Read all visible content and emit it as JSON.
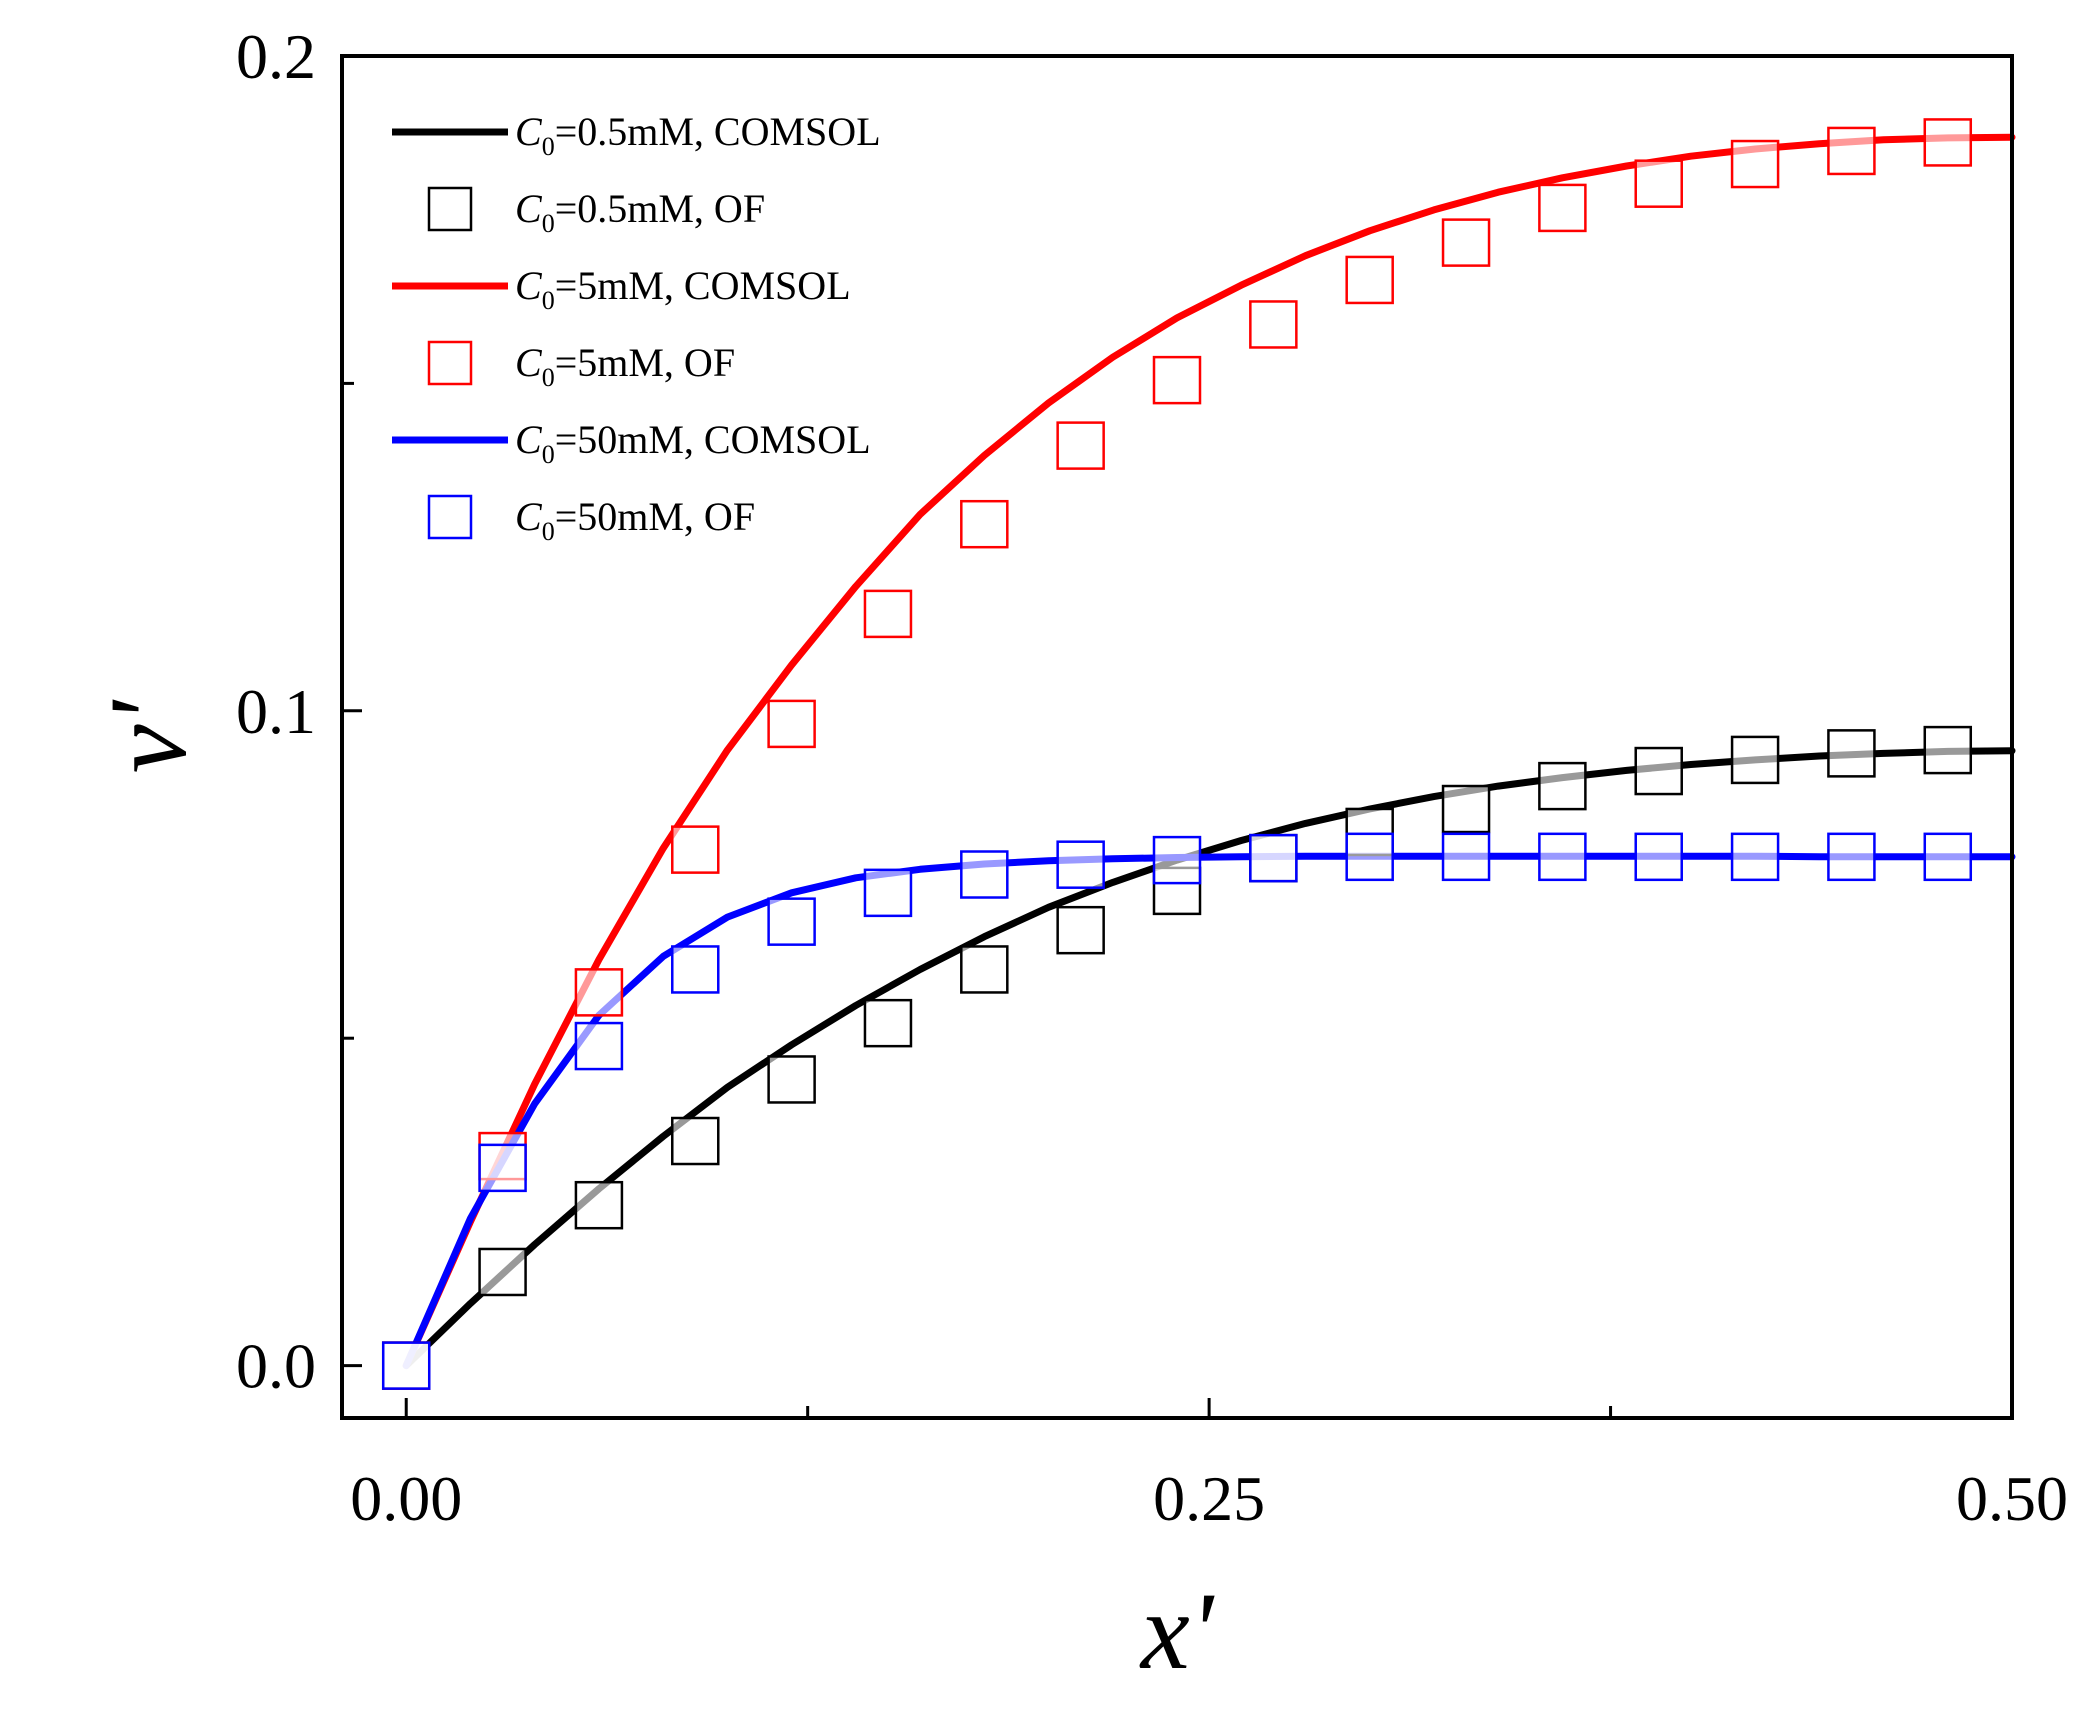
{
  "chart_data": {
    "type": "line",
    "title": "",
    "xlabel": "x'",
    "ylabel": "v'",
    "xlim": [
      -0.02,
      0.5
    ],
    "ylim": [
      -0.008,
      0.2
    ],
    "xticks": [
      0.0,
      0.125,
      0.25,
      0.375,
      0.5
    ],
    "xtick_labels": [
      "0.00",
      "",
      "0.25",
      "",
      "0.50"
    ],
    "yticks": [
      0.0,
      0.05,
      0.1,
      0.15,
      0.2
    ],
    "ytick_labels": [
      "0.0",
      "",
      "0.1",
      "",
      "0.2"
    ],
    "grid": false,
    "legend_position": "top-left",
    "line_x": [
      0.0,
      0.02,
      0.04,
      0.06,
      0.08,
      0.1,
      0.12,
      0.14,
      0.16,
      0.18,
      0.2,
      0.22,
      0.24,
      0.26,
      0.28,
      0.3,
      0.32,
      0.34,
      0.36,
      0.38,
      0.4,
      0.42,
      0.44,
      0.46,
      0.48,
      0.5
    ],
    "marker_x": [
      0.0,
      0.03,
      0.06,
      0.09,
      0.12,
      0.15,
      0.18,
      0.21,
      0.24,
      0.27,
      0.3,
      0.33,
      0.36,
      0.39,
      0.42,
      0.45,
      0.48
    ],
    "series": [
      {
        "name": "C0=0.5mM, COMSOL",
        "label_sym": "C",
        "label_sub": "0",
        "label_rest": "=0.5mM, COMSOL",
        "kind": "line",
        "color": "#000000",
        "values": [
          0.0,
          0.0095,
          0.0185,
          0.027,
          0.035,
          0.0425,
          0.049,
          0.055,
          0.0605,
          0.0655,
          0.07,
          0.0738,
          0.0772,
          0.0802,
          0.0828,
          0.085,
          0.0869,
          0.0885,
          0.0898,
          0.0909,
          0.0918,
          0.0925,
          0.0931,
          0.0935,
          0.0938,
          0.0939
        ]
      },
      {
        "name": "C0=0.5mM, OF",
        "label_sym": "C",
        "label_sub": "0",
        "label_rest": "=0.5mM, OF",
        "kind": "marker",
        "color": "#000000",
        "values": [
          0.0,
          0.0143,
          0.0245,
          0.0343,
          0.0437,
          0.0523,
          0.0605,
          0.0665,
          0.0725,
          0.0775,
          0.0815,
          0.085,
          0.0885,
          0.0908,
          0.0925,
          0.0935,
          0.094
        ]
      },
      {
        "name": "C0=5mM, COMSOL",
        "label_sym": "C",
        "label_sub": "0",
        "label_rest": "=5mM, COMSOL",
        "kind": "line",
        "color": "#ff0000",
        "values": [
          0.0,
          0.022,
          0.043,
          0.062,
          0.079,
          0.094,
          0.107,
          0.119,
          0.13,
          0.139,
          0.147,
          0.154,
          0.16,
          0.165,
          0.1695,
          0.1733,
          0.1765,
          0.1792,
          0.1814,
          0.1832,
          0.1847,
          0.1858,
          0.1866,
          0.1872,
          0.1875,
          0.1876
        ]
      },
      {
        "name": "C0=5mM, OF",
        "label_sym": "C",
        "label_sub": "0",
        "label_rest": "=5mM, OF",
        "kind": "marker",
        "color": "#ff0000",
        "values": [
          0.0,
          0.032,
          0.057,
          0.0788,
          0.098,
          0.1148,
          0.1285,
          0.1405,
          0.1505,
          0.159,
          0.1658,
          0.1715,
          0.1768,
          0.1805,
          0.1835,
          0.1855,
          0.1868
        ]
      },
      {
        "name": "C0=50mM, COMSOL",
        "label_sym": "C",
        "label_sub": "0",
        "label_rest": "=50mM, COMSOL",
        "kind": "line",
        "color": "#0000ff",
        "values": [
          0.0,
          0.0225,
          0.04,
          0.0535,
          0.0625,
          0.0685,
          0.0722,
          0.0745,
          0.0758,
          0.0766,
          0.0771,
          0.0774,
          0.0776,
          0.0777,
          0.0778,
          0.0778,
          0.0778,
          0.0778,
          0.0778,
          0.0778,
          0.0778,
          0.0778,
          0.0777,
          0.0777,
          0.0777,
          0.0777
        ]
      },
      {
        "name": "C0=50mM, OF",
        "label_sym": "C",
        "label_sub": "0",
        "label_rest": "=50mM, OF",
        "kind": "marker",
        "color": "#0000ff",
        "values": [
          0.0,
          0.0302,
          0.0488,
          0.0605,
          0.0678,
          0.0722,
          0.075,
          0.0765,
          0.0772,
          0.0775,
          0.0777,
          0.0777,
          0.0777,
          0.0777,
          0.0777,
          0.0777,
          0.0777
        ]
      }
    ]
  }
}
